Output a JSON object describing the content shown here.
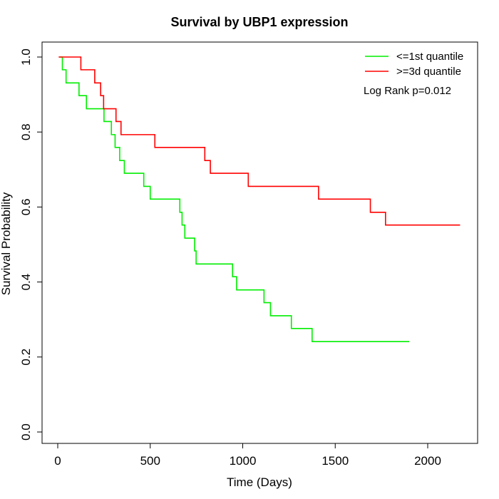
{
  "chart_data": {
    "type": "line",
    "title": "Survival by UBP1 expression",
    "xlabel": "Time (Days)",
    "ylabel": "Survival Probability",
    "xlim": [
      0,
      2250
    ],
    "ylim": [
      0,
      1.0
    ],
    "xticks": [
      0,
      500,
      1000,
      1500,
      2000
    ],
    "yticks": [
      0.0,
      0.2,
      0.4,
      0.6,
      0.8,
      1.0
    ],
    "xtick_labels": [
      "0",
      "500",
      "1000",
      "1500",
      "2000"
    ],
    "ytick_labels": [
      "0.0",
      "0.2",
      "0.4",
      "0.6",
      "0.8",
      "1.0"
    ],
    "grid": false,
    "legend_position": "top-right",
    "annotation": "Log Rank p=0.012",
    "series": [
      {
        "name": "<=1st quantile",
        "color": "#00ee00",
        "x": [
          10,
          25,
          45,
          115,
          155,
          250,
          290,
          310,
          335,
          360,
          375,
          465,
          500,
          660,
          672,
          687,
          702,
          740,
          748,
          945,
          967,
          1115,
          1150,
          1263,
          1375,
          1900
        ],
        "y": [
          1.0,
          0.966,
          0.931,
          0.897,
          0.862,
          0.828,
          0.793,
          0.759,
          0.724,
          0.69,
          0.69,
          0.655,
          0.621,
          0.586,
          0.552,
          0.517,
          0.517,
          0.483,
          0.448,
          0.414,
          0.379,
          0.345,
          0.31,
          0.276,
          0.241,
          0.241
        ]
      },
      {
        "name": ">=3d quantile",
        "color": "#ff0000",
        "x": [
          5,
          125,
          200,
          232,
          248,
          315,
          342,
          525,
          795,
          825,
          1030,
          1410,
          1690,
          1772,
          2175
        ],
        "y": [
          1.0,
          0.966,
          0.931,
          0.897,
          0.862,
          0.828,
          0.793,
          0.759,
          0.724,
          0.69,
          0.655,
          0.621,
          0.586,
          0.552,
          0.552
        ]
      }
    ]
  }
}
